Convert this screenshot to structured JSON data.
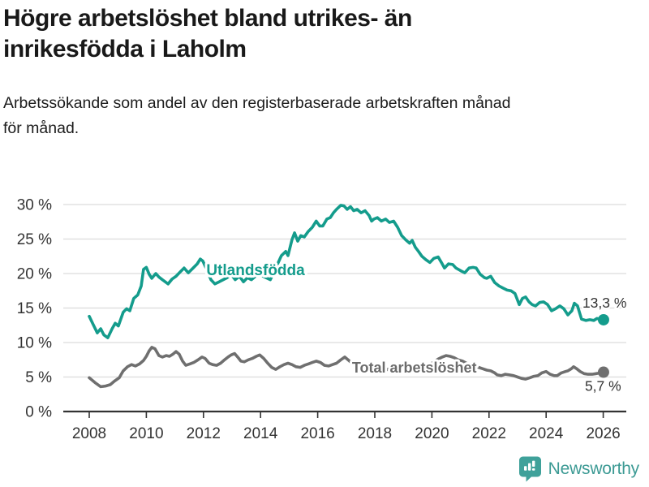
{
  "header": {
    "title_lines": [
      "Högre arbetslöshet bland utrikes- än",
      "inrikesfödda i Laholm"
    ],
    "subtitle_lines": [
      "Arbetssökande som andel av den registerbaserade arbetskraften månad",
      "för månad."
    ]
  },
  "footer": {
    "brand": "Newsworthy"
  },
  "colors": {
    "accent_teal": "#149c8c",
    "series_gray": "#6f6f6f",
    "label_gray": "#6b6b6b",
    "axis": "#333333",
    "grid": "#dcdcdc",
    "logo_teal": "#3fa19a"
  },
  "chart_data": {
    "type": "line",
    "title": "Högre arbetslöshet bland utrikes- än inrikesfödda i Laholm",
    "subtitle": "Arbetssökande som andel av den registerbaserade arbetskraften månad för månad.",
    "xlabel": "",
    "ylabel": "",
    "ylim": [
      0,
      30
    ],
    "xlim": [
      2007.1,
      2026.8
    ],
    "grid": "horizontal",
    "legend_position": "inline-labels",
    "y_ticks": {
      "values": [
        0,
        5,
        10,
        15,
        20,
        25,
        30
      ],
      "labels": [
        "0 %",
        "5 %",
        "10 %",
        "15 %",
        "20 %",
        "25 %",
        "30 %"
      ]
    },
    "x_ticks": {
      "values": [
        2008,
        2010,
        2012,
        2014,
        2016,
        2018,
        2020,
        2022,
        2024,
        2026
      ],
      "labels": [
        "2008",
        "2010",
        "2012",
        "2014",
        "2016",
        "2018",
        "2020",
        "2022",
        "2024",
        "2026"
      ]
    },
    "series": [
      {
        "name": "Utlandsfödda",
        "color": "#149c8c",
        "end_label": "13,3 %",
        "end_value": 13.3,
        "end_label_offset": [
          -26,
          -15
        ],
        "inline_label": {
          "text": "Utlandsfödda",
          "x": 2012.1,
          "y": 19.75,
          "font_size": 19
        },
        "points": [
          [
            2008.0,
            13.8
          ],
          [
            2008.14,
            12.6
          ],
          [
            2008.28,
            11.4
          ],
          [
            2008.4,
            12.0
          ],
          [
            2008.51,
            11.1
          ],
          [
            2008.65,
            10.7
          ],
          [
            2008.8,
            12.0
          ],
          [
            2008.91,
            12.8
          ],
          [
            2009.02,
            12.4
          ],
          [
            2009.19,
            14.4
          ],
          [
            2009.31,
            14.9
          ],
          [
            2009.42,
            14.6
          ],
          [
            2009.56,
            16.4
          ],
          [
            2009.7,
            16.9
          ],
          [
            2009.82,
            18.2
          ],
          [
            2009.9,
            20.6
          ],
          [
            2010.0,
            20.9
          ],
          [
            2010.1,
            19.9
          ],
          [
            2010.19,
            19.3
          ],
          [
            2010.33,
            20.0
          ],
          [
            2010.44,
            19.5
          ],
          [
            2010.56,
            19.1
          ],
          [
            2010.76,
            18.5
          ],
          [
            2010.9,
            19.2
          ],
          [
            2011.04,
            19.6
          ],
          [
            2011.18,
            20.2
          ],
          [
            2011.32,
            20.8
          ],
          [
            2011.47,
            20.1
          ],
          [
            2011.64,
            20.8
          ],
          [
            2011.78,
            21.4
          ],
          [
            2011.89,
            22.1
          ],
          [
            2011.98,
            21.8
          ],
          [
            2012.09,
            20.8
          ],
          [
            2012.26,
            19.1
          ],
          [
            2012.4,
            18.5
          ],
          [
            2012.55,
            18.8
          ],
          [
            2012.69,
            19.1
          ],
          [
            2012.83,
            19.4
          ],
          [
            2012.97,
            19.9
          ],
          [
            2013.11,
            19.1
          ],
          [
            2013.26,
            19.6
          ],
          [
            2013.4,
            18.8
          ],
          [
            2013.54,
            19.4
          ],
          [
            2013.68,
            19.1
          ],
          [
            2013.82,
            19.6
          ],
          [
            2013.97,
            19.9
          ],
          [
            2014.14,
            19.5
          ],
          [
            2014.34,
            19.1
          ],
          [
            2014.53,
            20.8
          ],
          [
            2014.73,
            22.6
          ],
          [
            2014.88,
            23.2
          ],
          [
            2014.96,
            22.6
          ],
          [
            2015.1,
            24.9
          ],
          [
            2015.19,
            25.9
          ],
          [
            2015.3,
            24.7
          ],
          [
            2015.41,
            25.5
          ],
          [
            2015.53,
            25.3
          ],
          [
            2015.67,
            26.1
          ],
          [
            2015.81,
            26.7
          ],
          [
            2015.95,
            27.6
          ],
          [
            2016.07,
            26.9
          ],
          [
            2016.18,
            26.9
          ],
          [
            2016.32,
            27.9
          ],
          [
            2016.44,
            28.1
          ],
          [
            2016.55,
            28.8
          ],
          [
            2016.66,
            29.3
          ],
          [
            2016.81,
            29.9
          ],
          [
            2016.92,
            29.8
          ],
          [
            2017.03,
            29.3
          ],
          [
            2017.15,
            29.7
          ],
          [
            2017.26,
            29.1
          ],
          [
            2017.38,
            29.3
          ],
          [
            2017.52,
            28.8
          ],
          [
            2017.66,
            29.1
          ],
          [
            2017.8,
            28.4
          ],
          [
            2017.89,
            27.6
          ],
          [
            2017.97,
            27.9
          ],
          [
            2018.09,
            28.1
          ],
          [
            2018.23,
            27.6
          ],
          [
            2018.38,
            27.9
          ],
          [
            2018.51,
            27.4
          ],
          [
            2018.66,
            27.6
          ],
          [
            2018.8,
            26.7
          ],
          [
            2018.94,
            25.5
          ],
          [
            2019.08,
            24.9
          ],
          [
            2019.22,
            24.4
          ],
          [
            2019.31,
            24.8
          ],
          [
            2019.42,
            23.8
          ],
          [
            2019.53,
            23.2
          ],
          [
            2019.65,
            22.5
          ],
          [
            2019.79,
            22.0
          ],
          [
            2019.93,
            21.6
          ],
          [
            2020.07,
            22.2
          ],
          [
            2020.22,
            22.4
          ],
          [
            2020.36,
            21.4
          ],
          [
            2020.44,
            20.8
          ],
          [
            2020.58,
            21.4
          ],
          [
            2020.73,
            21.3
          ],
          [
            2020.84,
            20.8
          ],
          [
            2021.01,
            20.4
          ],
          [
            2021.15,
            20.1
          ],
          [
            2021.3,
            20.8
          ],
          [
            2021.44,
            20.9
          ],
          [
            2021.55,
            20.8
          ],
          [
            2021.69,
            19.9
          ],
          [
            2021.84,
            19.4
          ],
          [
            2021.92,
            19.3
          ],
          [
            2022.06,
            19.6
          ],
          [
            2022.2,
            18.7
          ],
          [
            2022.35,
            18.2
          ],
          [
            2022.49,
            17.9
          ],
          [
            2022.63,
            17.6
          ],
          [
            2022.77,
            17.5
          ],
          [
            2022.91,
            17.1
          ],
          [
            2023.06,
            15.5
          ],
          [
            2023.17,
            16.4
          ],
          [
            2023.28,
            16.6
          ],
          [
            2023.4,
            15.9
          ],
          [
            2023.51,
            15.5
          ],
          [
            2023.63,
            15.3
          ],
          [
            2023.77,
            15.8
          ],
          [
            2023.91,
            15.9
          ],
          [
            2024.05,
            15.5
          ],
          [
            2024.19,
            14.6
          ],
          [
            2024.33,
            14.9
          ],
          [
            2024.48,
            15.3
          ],
          [
            2024.62,
            14.9
          ],
          [
            2024.76,
            14.0
          ],
          [
            2024.9,
            14.6
          ],
          [
            2024.99,
            15.7
          ],
          [
            2025.1,
            15.3
          ],
          [
            2025.24,
            13.4
          ],
          [
            2025.39,
            13.2
          ],
          [
            2025.53,
            13.3
          ],
          [
            2025.67,
            13.2
          ],
          [
            2025.78,
            13.5
          ],
          [
            2025.9,
            13.3
          ],
          [
            2026.01,
            13.3
          ]
        ]
      },
      {
        "name": "Total arbetslöshet",
        "color": "#6f6f6f",
        "label_color": "#6b6b6b",
        "end_label": "5,7 %",
        "end_value": 5.7,
        "end_label_offset": [
          -23,
          23
        ],
        "inline_label": {
          "text": "Total arbetslöshet",
          "x": 2017.2,
          "y": 5.65,
          "font_size": 18
        },
        "points": [
          [
            2008.0,
            4.9
          ],
          [
            2008.2,
            4.2
          ],
          [
            2008.4,
            3.6
          ],
          [
            2008.57,
            3.7
          ],
          [
            2008.74,
            3.9
          ],
          [
            2008.88,
            4.4
          ],
          [
            2009.05,
            4.9
          ],
          [
            2009.19,
            5.9
          ],
          [
            2009.34,
            6.5
          ],
          [
            2009.48,
            6.8
          ],
          [
            2009.62,
            6.6
          ],
          [
            2009.76,
            6.9
          ],
          [
            2009.9,
            7.4
          ],
          [
            2010.0,
            8.0
          ],
          [
            2010.1,
            8.8
          ],
          [
            2010.19,
            9.3
          ],
          [
            2010.3,
            9.1
          ],
          [
            2010.44,
            8.1
          ],
          [
            2010.56,
            7.9
          ],
          [
            2010.7,
            8.1
          ],
          [
            2010.81,
            8.0
          ],
          [
            2010.93,
            8.3
          ],
          [
            2011.04,
            8.7
          ],
          [
            2011.15,
            8.3
          ],
          [
            2011.27,
            7.3
          ],
          [
            2011.38,
            6.7
          ],
          [
            2011.52,
            6.9
          ],
          [
            2011.66,
            7.1
          ],
          [
            2011.81,
            7.5
          ],
          [
            2011.95,
            7.9
          ],
          [
            2012.06,
            7.7
          ],
          [
            2012.2,
            7.0
          ],
          [
            2012.32,
            6.8
          ],
          [
            2012.46,
            6.7
          ],
          [
            2012.6,
            7.0
          ],
          [
            2012.74,
            7.5
          ],
          [
            2012.86,
            7.9
          ],
          [
            2012.97,
            8.2
          ],
          [
            2013.09,
            8.4
          ],
          [
            2013.2,
            7.9
          ],
          [
            2013.31,
            7.3
          ],
          [
            2013.43,
            7.2
          ],
          [
            2013.57,
            7.5
          ],
          [
            2013.71,
            7.7
          ],
          [
            2013.85,
            8.0
          ],
          [
            2013.97,
            8.2
          ],
          [
            2014.11,
            7.7
          ],
          [
            2014.25,
            7.0
          ],
          [
            2014.39,
            6.4
          ],
          [
            2014.53,
            6.1
          ],
          [
            2014.68,
            6.5
          ],
          [
            2014.82,
            6.8
          ],
          [
            2014.96,
            7.0
          ],
          [
            2015.1,
            6.8
          ],
          [
            2015.24,
            6.5
          ],
          [
            2015.39,
            6.4
          ],
          [
            2015.53,
            6.7
          ],
          [
            2015.67,
            6.9
          ],
          [
            2015.81,
            7.1
          ],
          [
            2015.95,
            7.3
          ],
          [
            2016.1,
            7.1
          ],
          [
            2016.24,
            6.7
          ],
          [
            2016.38,
            6.6
          ],
          [
            2016.52,
            6.8
          ],
          [
            2016.66,
            7.0
          ],
          [
            2016.81,
            7.5
          ],
          [
            2016.95,
            7.9
          ],
          [
            2017.09,
            7.4
          ],
          [
            2017.23,
            6.9
          ],
          [
            2017.38,
            6.6
          ],
          [
            2017.52,
            6.4
          ],
          [
            2017.66,
            6.2
          ],
          [
            2017.8,
            6.5
          ],
          [
            2017.94,
            6.8
          ],
          [
            2018.09,
            6.5
          ],
          [
            2018.23,
            6.2
          ],
          [
            2018.38,
            6.0
          ],
          [
            2018.51,
            6.2
          ],
          [
            2018.66,
            6.4
          ],
          [
            2018.8,
            6.6
          ],
          [
            2018.94,
            6.5
          ],
          [
            2019.08,
            6.3
          ],
          [
            2019.22,
            6.1
          ],
          [
            2019.36,
            6.3
          ],
          [
            2019.5,
            6.5
          ],
          [
            2019.65,
            6.7
          ],
          [
            2019.79,
            6.6
          ],
          [
            2019.93,
            6.8
          ],
          [
            2020.07,
            7.2
          ],
          [
            2020.22,
            7.6
          ],
          [
            2020.36,
            7.9
          ],
          [
            2020.5,
            8.1
          ],
          [
            2020.64,
            8.0
          ],
          [
            2020.78,
            7.8
          ],
          [
            2020.92,
            7.5
          ],
          [
            2021.07,
            7.3
          ],
          [
            2021.21,
            7.0
          ],
          [
            2021.35,
            6.8
          ],
          [
            2021.49,
            6.6
          ],
          [
            2021.64,
            6.4
          ],
          [
            2021.78,
            6.2
          ],
          [
            2021.92,
            6.0
          ],
          [
            2022.06,
            5.9
          ],
          [
            2022.2,
            5.6
          ],
          [
            2022.29,
            5.3
          ],
          [
            2022.43,
            5.2
          ],
          [
            2022.57,
            5.4
          ],
          [
            2022.72,
            5.3
          ],
          [
            2022.86,
            5.2
          ],
          [
            2023.0,
            5.0
          ],
          [
            2023.14,
            4.8
          ],
          [
            2023.28,
            4.7
          ],
          [
            2023.43,
            4.9
          ],
          [
            2023.57,
            5.1
          ],
          [
            2023.71,
            5.2
          ],
          [
            2023.85,
            5.6
          ],
          [
            2024.0,
            5.8
          ],
          [
            2024.14,
            5.4
          ],
          [
            2024.28,
            5.2
          ],
          [
            2024.39,
            5.2
          ],
          [
            2024.53,
            5.6
          ],
          [
            2024.68,
            5.8
          ],
          [
            2024.76,
            5.9
          ],
          [
            2024.88,
            6.2
          ],
          [
            2024.96,
            6.5
          ],
          [
            2025.07,
            6.2
          ],
          [
            2025.19,
            5.8
          ],
          [
            2025.33,
            5.5
          ],
          [
            2025.47,
            5.4
          ],
          [
            2025.61,
            5.4
          ],
          [
            2025.75,
            5.5
          ],
          [
            2025.9,
            5.6
          ],
          [
            2026.01,
            5.7
          ]
        ]
      }
    ]
  }
}
